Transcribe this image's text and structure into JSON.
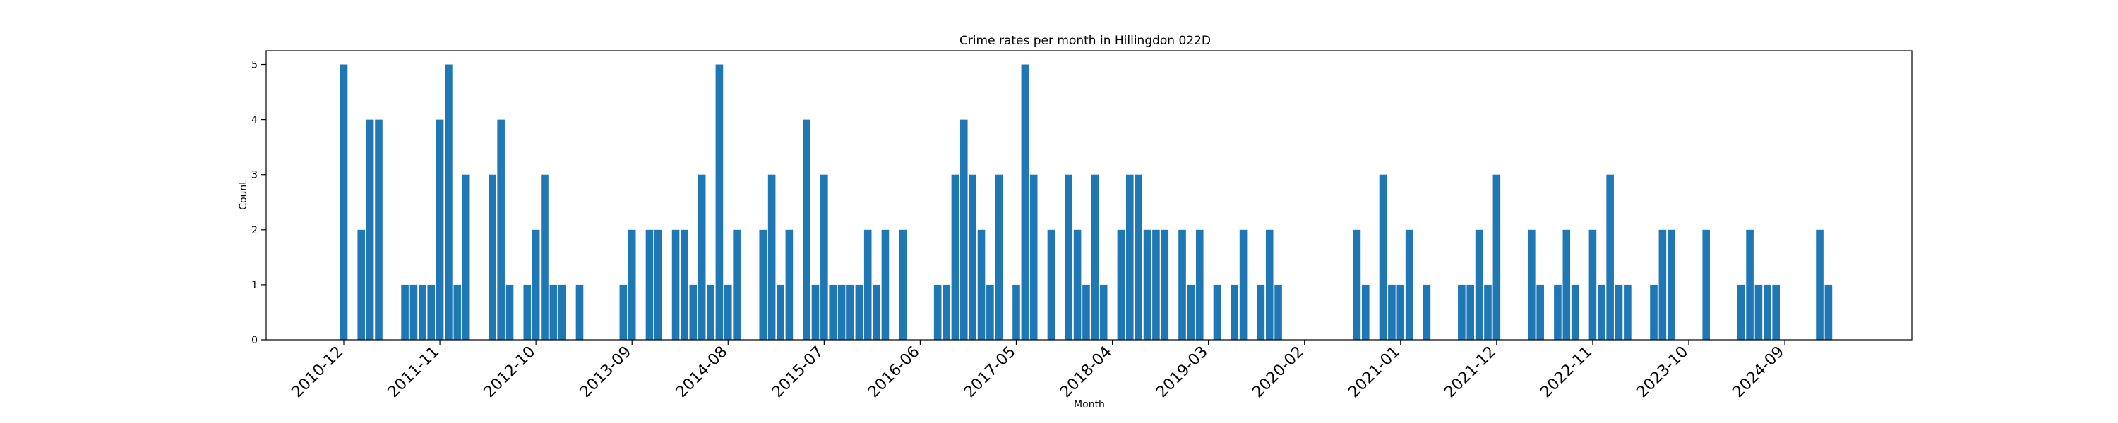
{
  "chart_data": {
    "type": "bar",
    "title": "Crime rates per month in Hillingdon 022D",
    "xlabel": "Month",
    "ylabel": "Count",
    "ylim": [
      0,
      5.25
    ],
    "yticks": [
      0,
      1,
      2,
      3,
      4,
      5
    ],
    "xticks": [
      "2010-12",
      "2011-11",
      "2012-10",
      "2013-09",
      "2014-08",
      "2015-07",
      "2016-06",
      "2017-05",
      "2018-04",
      "2019-03",
      "2020-02",
      "2021-01",
      "2021-12",
      "2022-11",
      "2023-10",
      "2024-09"
    ],
    "bar_color": "#1f77b4",
    "grid": false,
    "x": [
      "2010-12",
      "2011-02",
      "2011-03",
      "2011-04",
      "2011-07",
      "2011-08",
      "2011-09",
      "2011-10",
      "2011-11",
      "2011-12",
      "2012-01",
      "2012-02",
      "2012-05",
      "2012-06",
      "2012-07",
      "2012-09",
      "2012-10",
      "2012-11",
      "2012-12",
      "2013-01",
      "2013-03",
      "2013-08",
      "2013-09",
      "2013-11",
      "2013-12",
      "2014-02",
      "2014-03",
      "2014-04",
      "2014-05",
      "2014-06",
      "2014-07",
      "2014-08",
      "2014-09",
      "2014-12",
      "2015-01",
      "2015-02",
      "2015-03",
      "2015-05",
      "2015-06",
      "2015-07",
      "2015-08",
      "2015-09",
      "2015-10",
      "2015-11",
      "2015-12",
      "2016-01",
      "2016-02",
      "2016-04",
      "2016-08",
      "2016-09",
      "2016-10",
      "2016-11",
      "2016-12",
      "2017-01",
      "2017-02",
      "2017-03",
      "2017-05",
      "2017-06",
      "2017-07",
      "2017-09",
      "2017-11",
      "2017-12",
      "2018-01",
      "2018-02",
      "2018-03",
      "2018-05",
      "2018-06",
      "2018-07",
      "2018-08",
      "2018-09",
      "2018-10",
      "2018-12",
      "2019-01",
      "2019-02",
      "2019-04",
      "2019-06",
      "2019-07",
      "2019-09",
      "2019-10",
      "2019-11",
      "2020-08",
      "2020-09",
      "2020-11",
      "2020-12",
      "2021-01",
      "2021-02",
      "2021-04",
      "2021-08",
      "2021-09",
      "2021-10",
      "2021-11",
      "2021-12",
      "2022-04",
      "2022-05",
      "2022-07",
      "2022-08",
      "2022-09",
      "2022-11",
      "2022-12",
      "2023-01",
      "2023-02",
      "2023-03",
      "2023-06",
      "2023-07",
      "2023-08",
      "2023-12",
      "2024-04",
      "2024-05",
      "2024-06",
      "2024-07",
      "2024-08",
      "2025-01",
      "2025-02"
    ],
    "values": [
      5,
      2,
      4,
      4,
      1,
      1,
      1,
      1,
      4,
      5,
      1,
      3,
      3,
      4,
      1,
      1,
      2,
      3,
      1,
      1,
      1,
      1,
      2,
      2,
      2,
      2,
      2,
      1,
      3,
      1,
      5,
      1,
      2,
      2,
      3,
      1,
      2,
      4,
      1,
      3,
      1,
      1,
      1,
      1,
      2,
      1,
      2,
      2,
      1,
      1,
      3,
      4,
      3,
      2,
      1,
      3,
      1,
      5,
      3,
      2,
      3,
      2,
      1,
      3,
      1,
      2,
      3,
      3,
      2,
      2,
      2,
      2,
      1,
      2,
      1,
      1,
      2,
      1,
      2,
      1,
      2,
      1,
      3,
      1,
      1,
      2,
      1,
      1,
      1,
      2,
      1,
      3,
      2,
      1,
      1,
      2,
      1,
      2,
      1,
      3,
      1,
      1,
      1,
      2,
      2,
      2,
      1,
      2,
      1,
      1,
      1,
      2,
      1
    ]
  }
}
